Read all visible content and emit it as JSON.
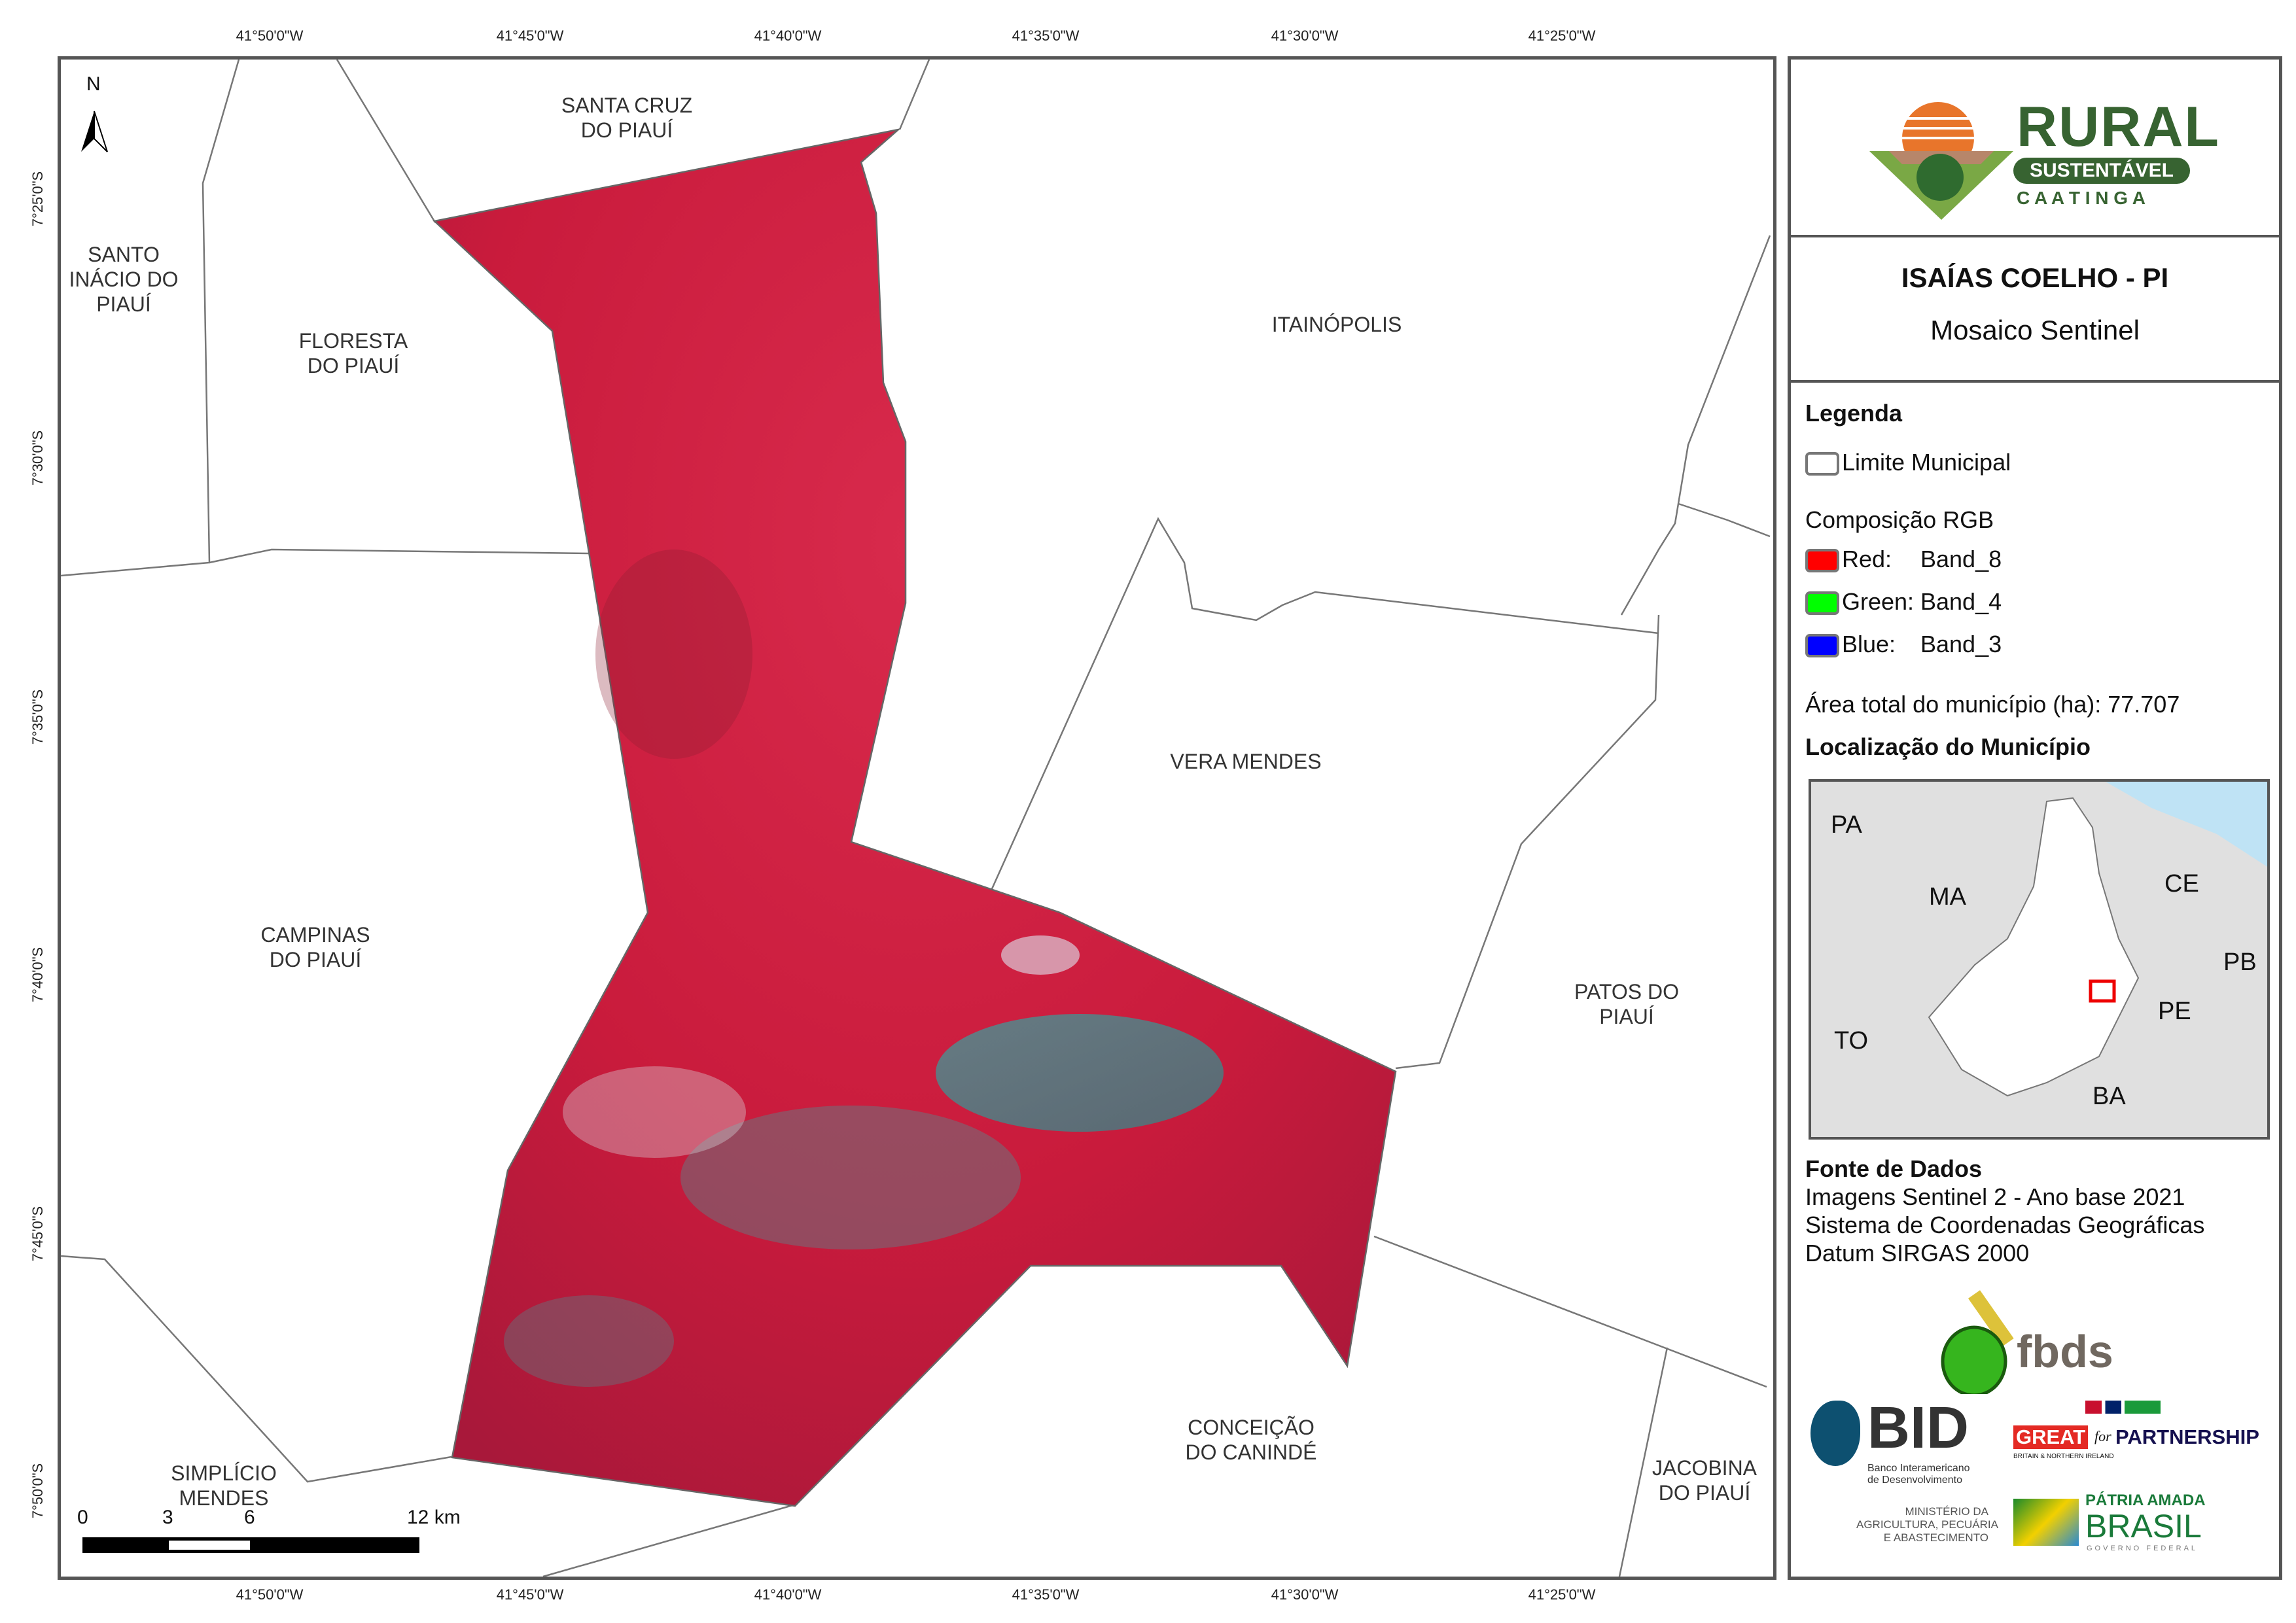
{
  "coordinates": {
    "longitude_labels": [
      "41°50'0\"W",
      "41°45'0\"W",
      "41°40'0\"W",
      "41°35'0\"W",
      "41°30'0\"W",
      "41°25'0\"W"
    ],
    "latitude_labels": [
      "7°25'0\"S",
      "7°30'0\"S",
      "7°35'0\"S",
      "7°40'0\"S",
      "7°45'0\"S",
      "7°50'0\"S"
    ]
  },
  "north_arrow": "N",
  "municipalities": [
    "SANTA CRUZ\nDO PIAUÍ",
    "SANTO\nINÁCIO DO\nPIAUÍ",
    "FLORESTA\nDO PIAUÍ",
    "ITAINÓPOLIS",
    "VERA MENDES",
    "CAMPINAS\nDO PIAUÍ",
    "PATOS DO\nPIAUÍ",
    "CONCEIÇÃO\nDO CANINDÉ",
    "SIMPLÍCIO\nMENDES",
    "JACOBINA\nDO PIAUÍ"
  ],
  "scale_bar": {
    "ticks": [
      "0",
      "3",
      "6",
      "12 km"
    ]
  },
  "logo": {
    "rural": "RURAL",
    "sustentavel": "SUSTENTÁVEL",
    "caatinga": "C A A T I N G A"
  },
  "title": "ISAÍAS COELHO - PI",
  "subtitle": "Mosaico Sentinel",
  "legend": {
    "heading": "Legenda",
    "limite": "Limite Municipal",
    "rgb_heading": "Composição RGB",
    "bands": [
      {
        "label": "Red:",
        "band": "Band_8",
        "color": "#ff0000"
      },
      {
        "label": "Green:",
        "band": "Band_4",
        "color": "#00ff00"
      },
      {
        "label": "Blue:",
        "band": "Band_3",
        "color": "#0000ff"
      }
    ],
    "area": "Área total do município (ha): 77.707"
  },
  "location": {
    "heading": "Localização do Município",
    "states": [
      "PA",
      "MA",
      "CE",
      "PB",
      "PE",
      "TO",
      "BA"
    ]
  },
  "source": {
    "heading": "Fonte de Dados",
    "lines": [
      "Imagens Sentinel 2 - Ano base 2021",
      "Sistema de Coordenadas Geográficas",
      "Datum SIRGAS 2000"
    ]
  },
  "partners": {
    "fbds": "fbds",
    "bid": "BID",
    "bid_name": "Banco Interamericano\nde Desenvolvimento",
    "great": "GREAT",
    "for": "for",
    "partnership": "PARTNERSHIP",
    "britain": "BRITAIN & NORTHERN IRELAND",
    "ministerio": "MINISTÉRIO DA\nAGRICULTURA, PECUÁRIA\nE ABASTECIMENTO",
    "patria": "PÁTRIA AMADA",
    "brasil": "BRASIL",
    "governo": "GOVERNO FEDERAL"
  }
}
